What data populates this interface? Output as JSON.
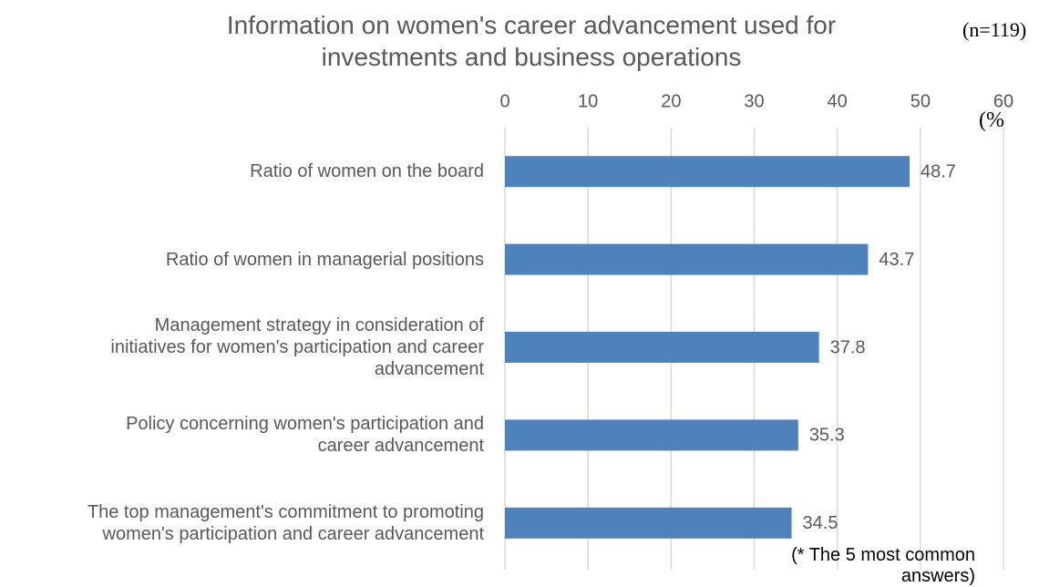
{
  "chart_data": {
    "type": "barh",
    "title": "Information on women's career advancement used for\ninvestments and business operations",
    "sample_size": "(n=119)",
    "unit": "(%",
    "note": "(* The 5 most common answers)",
    "categories": [
      "Ratio of women on the board",
      "Ratio of women in managerial positions",
      "Management strategy in consideration of\ninitiatives for women's participation and career\nadvancement",
      "Policy concerning women's participation and\ncareer advancement",
      "The top management's commitment to promoting\nwomen's participation and career advancement"
    ],
    "values": [
      48.7,
      43.7,
      37.8,
      35.3,
      34.5
    ],
    "color": "#4f81bd",
    "xlim": [
      0,
      60
    ],
    "xticks": [
      0,
      10,
      20,
      30,
      40,
      50,
      60
    ],
    "grid": true
  }
}
